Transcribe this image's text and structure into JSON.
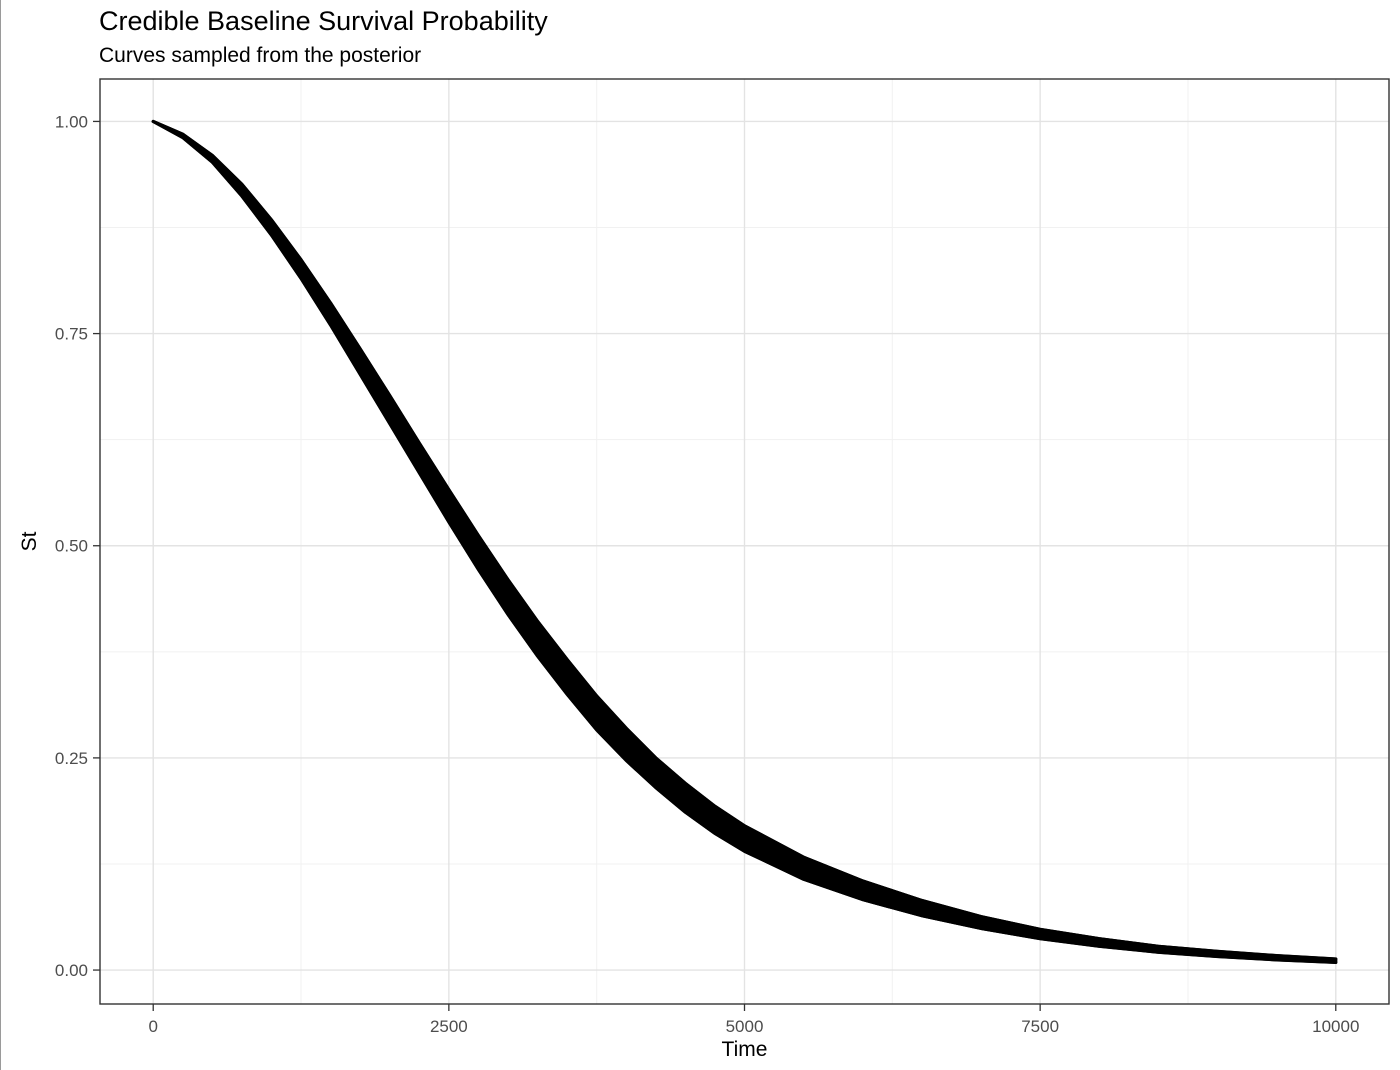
{
  "chart_data": {
    "type": "line",
    "title": "Credible Baseline Survival Probability",
    "subtitle": "Curves sampled from the posterior",
    "xlabel": "Time",
    "ylabel": "St",
    "xlim": [
      -450,
      10450
    ],
    "ylim": [
      -0.04,
      1.05
    ],
    "x_ticks": [
      0,
      2500,
      5000,
      7500,
      10000
    ],
    "x_tick_labels": [
      "0",
      "2500",
      "5000",
      "7500",
      "10000"
    ],
    "y_ticks": [
      0.0,
      0.25,
      0.5,
      0.75,
      1.0
    ],
    "y_tick_labels": [
      "0.00",
      "0.25",
      "0.50",
      "0.75",
      "1.00"
    ],
    "x_minor_ticks": [
      1250,
      3750,
      6250,
      8750
    ],
    "y_minor_ticks": [
      0.125,
      0.375,
      0.625,
      0.875
    ],
    "grid": true,
    "legend": "none",
    "band": {
      "name": "",
      "x": [
        0,
        250,
        500,
        750,
        1000,
        1250,
        1500,
        1750,
        2000,
        2250,
        2500,
        2750,
        3000,
        3250,
        3500,
        3750,
        4000,
        4250,
        4500,
        4750,
        5000,
        5500,
        6000,
        6500,
        7000,
        7500,
        8000,
        8500,
        9000,
        9500,
        10000
      ],
      "upper": [
        1.0,
        0.985,
        0.96,
        0.926,
        0.884,
        0.837,
        0.786,
        0.732,
        0.677,
        0.621,
        0.566,
        0.512,
        0.46,
        0.411,
        0.366,
        0.323,
        0.285,
        0.25,
        0.22,
        0.193,
        0.17,
        0.133,
        0.105,
        0.082,
        0.063,
        0.048,
        0.037,
        0.028,
        0.022,
        0.017,
        0.013
      ],
      "lower": [
        1.0,
        0.981,
        0.952,
        0.912,
        0.866,
        0.815,
        0.76,
        0.702,
        0.644,
        0.586,
        0.528,
        0.472,
        0.419,
        0.37,
        0.325,
        0.283,
        0.247,
        0.215,
        0.186,
        0.161,
        0.14,
        0.107,
        0.083,
        0.064,
        0.049,
        0.037,
        0.028,
        0.021,
        0.016,
        0.012,
        0.009
      ]
    }
  },
  "colors": {
    "background": "#ffffff",
    "panel_border": "#333333",
    "grid_major": "#e3e3e3",
    "grid_minor": "#f1f1f1",
    "band": "#000000",
    "tick_label": "#4d4d4d"
  }
}
